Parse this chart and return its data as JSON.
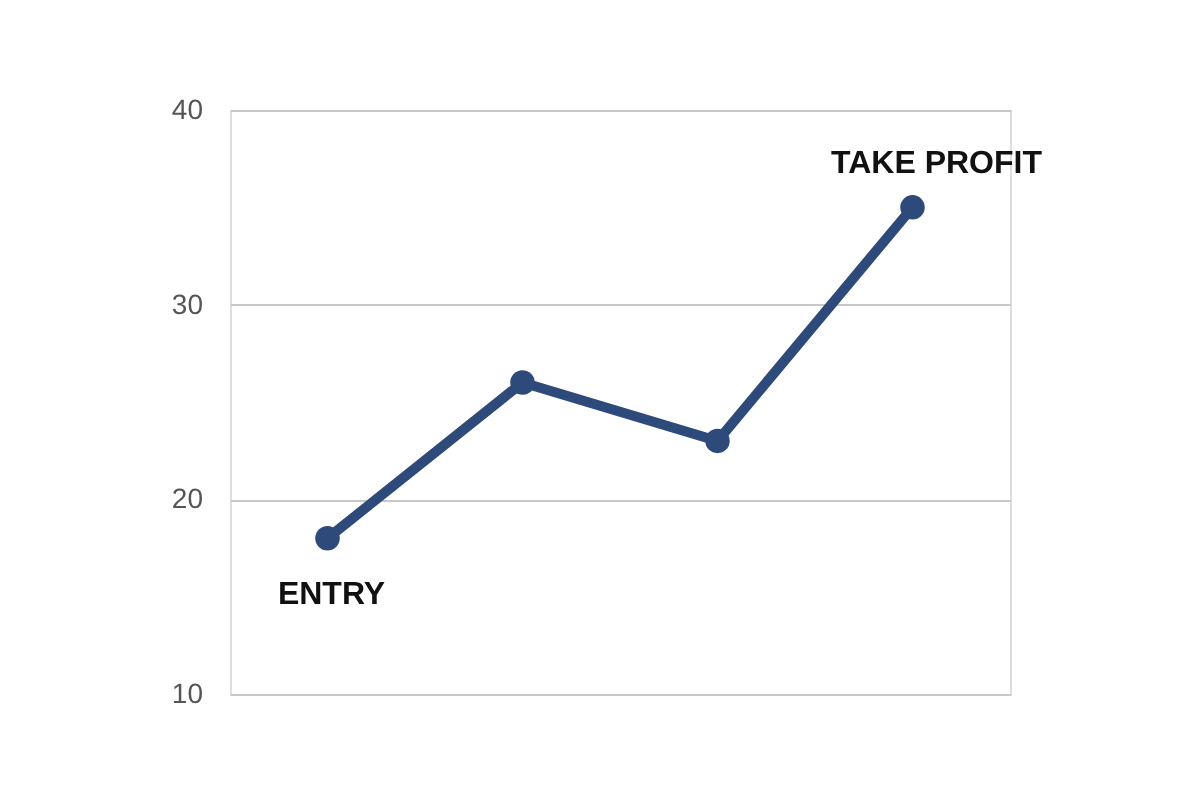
{
  "chart_data": {
    "type": "line",
    "categories": [
      null,
      null,
      null,
      null
    ],
    "series": [
      {
        "color": "#2e4a7a",
        "values": [
          18,
          26,
          23,
          35
        ]
      }
    ],
    "ylim": [
      10,
      40
    ],
    "yticks": [
      10,
      20,
      30,
      40
    ],
    "grid": "y",
    "tick_labels": "y",
    "marker": "circle",
    "line_style": "solid",
    "annotations": [
      "ENTRY",
      "TAKE PROFIT"
    ]
  }
}
